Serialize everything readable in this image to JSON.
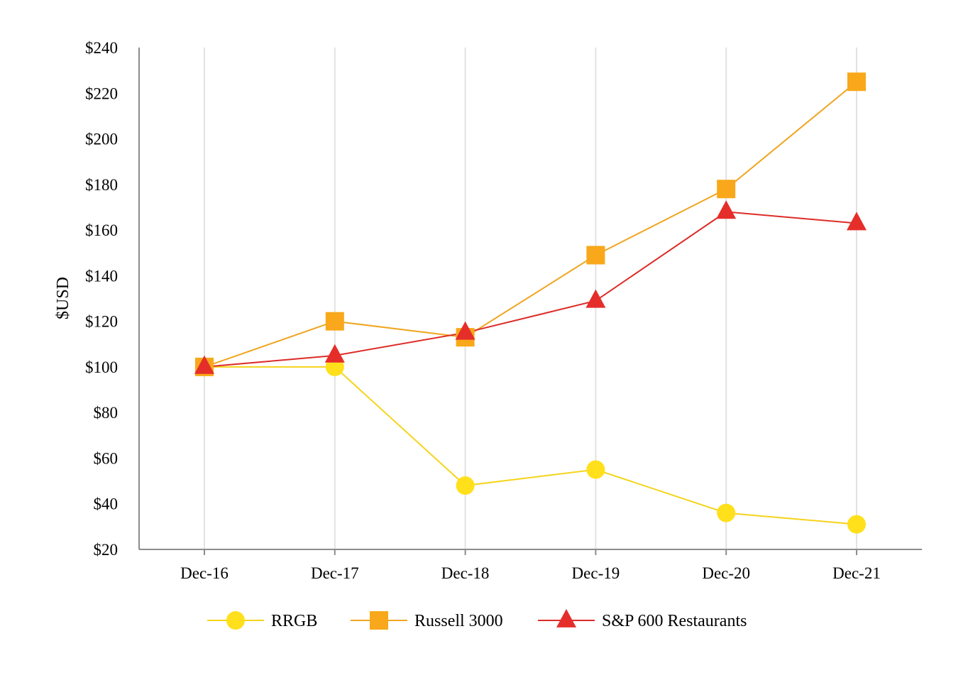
{
  "chart_data": {
    "type": "line",
    "title": "",
    "xlabel": "",
    "ylabel": "$USD",
    "categories": [
      "Dec-16",
      "Dec-17",
      "Dec-18",
      "Dec-19",
      "Dec-20",
      "Dec-21"
    ],
    "ylim": [
      20,
      240
    ],
    "ytick_values": [
      20,
      40,
      60,
      80,
      100,
      120,
      140,
      160,
      180,
      200,
      220,
      240
    ],
    "ytick_labels": [
      "$20",
      "$40",
      "$60",
      "$80",
      "$100",
      "$120",
      "$140",
      "$160",
      "$180",
      "$200",
      "$220",
      "$240"
    ],
    "grid": "vertical",
    "legend_position": "bottom",
    "series": [
      {
        "name": "RRGB",
        "marker": "circle",
        "color": "#FFE01B",
        "line_color": "#F5D41A",
        "values": [
          100,
          100,
          48,
          55,
          36,
          31
        ]
      },
      {
        "name": "Russell 3000",
        "marker": "square",
        "color": "#F8A81A",
        "line_color": "#F0A520",
        "values": [
          100,
          120,
          113,
          149,
          178,
          225
        ]
      },
      {
        "name": "S&P 600 Restaurants",
        "marker": "triangle",
        "color": "#E52E2A",
        "line_color": "#DC2C28",
        "values": [
          100,
          105,
          115,
          129,
          168,
          163
        ]
      }
    ]
  }
}
